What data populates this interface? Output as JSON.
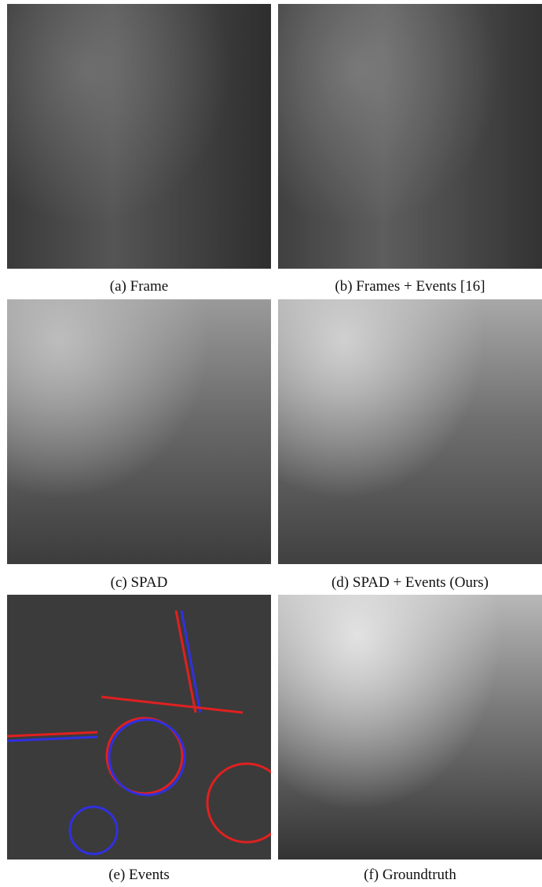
{
  "figure": {
    "panels": [
      {
        "caption": "(a) Frame"
      },
      {
        "caption": "(b) Frames + Events [16]"
      },
      {
        "caption": "(c) SPAD"
      },
      {
        "caption": "(d) SPAD + Events (Ours)"
      },
      {
        "caption": "(e) Events"
      },
      {
        "caption": "(f) Groundtruth"
      }
    ]
  }
}
